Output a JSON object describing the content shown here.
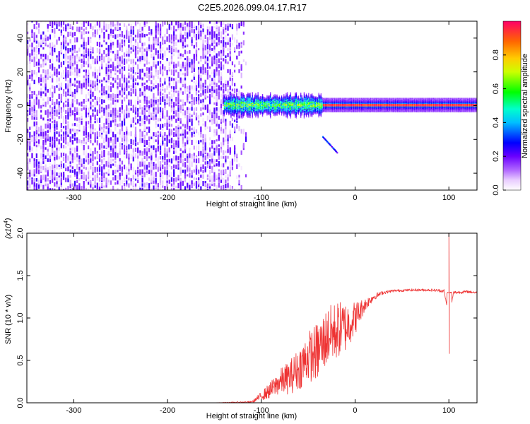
{
  "title": "C2E5.2026.099.04.17.R17",
  "chart_data": [
    {
      "type": "heatmap",
      "xlabel": "Height of straight line (km)",
      "ylabel": "Frequency (Hz)",
      "xlim": [
        -350,
        130
      ],
      "ylim": [
        -50,
        50
      ],
      "xticks": [
        -300,
        -200,
        -100,
        0,
        100
      ],
      "xtick_labels": [
        "-300",
        "-200",
        "-100",
        "0",
        "100"
      ],
      "yticks": [
        -40,
        -20,
        0,
        20,
        40
      ],
      "ytick_labels": [
        "-40",
        "-20",
        "0",
        "20",
        "40"
      ],
      "colorbar": {
        "label": "Normalized spectral amplitude",
        "range": [
          0,
          1
        ],
        "ticks": [
          0.0,
          0.2,
          0.4,
          0.6,
          0.8
        ],
        "tick_labels": [
          "0.0",
          "0.2",
          "0.4",
          "0.6",
          "0.8"
        ],
        "colormap": [
          "#ffffff",
          "#d9b3ff",
          "#8000ff",
          "#0000ff",
          "#00ffff",
          "#00ff00",
          "#ffff00",
          "#ff8000",
          "#ff0000"
        ]
      },
      "regions": [
        {
          "name": "noise",
          "x_range": [
            -350,
            -115
          ],
          "freq_range": [
            -50,
            50
          ],
          "amplitude": [
            0.05,
            0.15
          ]
        },
        {
          "name": "transition",
          "x_range": [
            -140,
            -35
          ],
          "freq_center": 0,
          "half_width_hz": 6,
          "amplitude": [
            0.3,
            0.6
          ]
        },
        {
          "name": "tone",
          "x_range": [
            -35,
            130
          ],
          "freq_center": 0,
          "half_width_hz": 4,
          "amplitude": [
            0.7,
            1.0
          ]
        }
      ]
    },
    {
      "type": "line",
      "xlabel": "Height of straight line (km)",
      "ylabel": "SNR (10 * v/v)",
      "y_multiplier": "(x10",
      "y_multiplier_exp": "4",
      "y_multiplier_close": ")",
      "xlim": [
        -350,
        130
      ],
      "ylim": [
        0.0,
        2.0
      ],
      "xticks": [
        -300,
        -200,
        -100,
        0,
        100
      ],
      "xtick_labels": [
        "-300",
        "-200",
        "-100",
        "0",
        "100"
      ],
      "yticks": [
        0.0,
        0.5,
        1.0,
        1.5,
        2.0
      ],
      "ytick_labels": [
        "0.0",
        "0.5",
        "1.0",
        "1.5",
        "2.0"
      ],
      "color": "#ee3333",
      "series": [
        {
          "name": "SNR",
          "x": [
            -350,
            -300,
            -250,
            -200,
            -150,
            -110,
            -100,
            -90,
            -80,
            -70,
            -60,
            -50,
            -40,
            -30,
            -20,
            -10,
            0,
            10,
            20,
            30,
            40,
            60,
            80,
            95,
            100,
            105,
            120,
            130
          ],
          "y": [
            0.0,
            0.0,
            0.0,
            0.0,
            0.0,
            0.01,
            0.08,
            0.15,
            0.25,
            0.3,
            0.4,
            0.55,
            0.6,
            0.78,
            0.85,
            0.9,
            1.0,
            1.15,
            1.25,
            1.3,
            1.32,
            1.33,
            1.33,
            1.32,
            1.0,
            1.3,
            1.31,
            1.3
          ],
          "noise_amp": [
            0.0,
            0.0,
            0.0,
            0.0,
            0.0,
            0.01,
            0.05,
            0.1,
            0.15,
            0.2,
            0.25,
            0.3,
            0.35,
            0.35,
            0.35,
            0.3,
            0.2,
            0.08,
            0.04,
            0.02,
            0.015,
            0.015,
            0.015,
            0.02,
            0.0,
            0.02,
            0.015,
            0.015
          ],
          "spikes": [
            {
              "x": 100,
              "y": 2.0
            },
            {
              "x": 100.6,
              "y": 0.58
            }
          ]
        }
      ]
    }
  ]
}
